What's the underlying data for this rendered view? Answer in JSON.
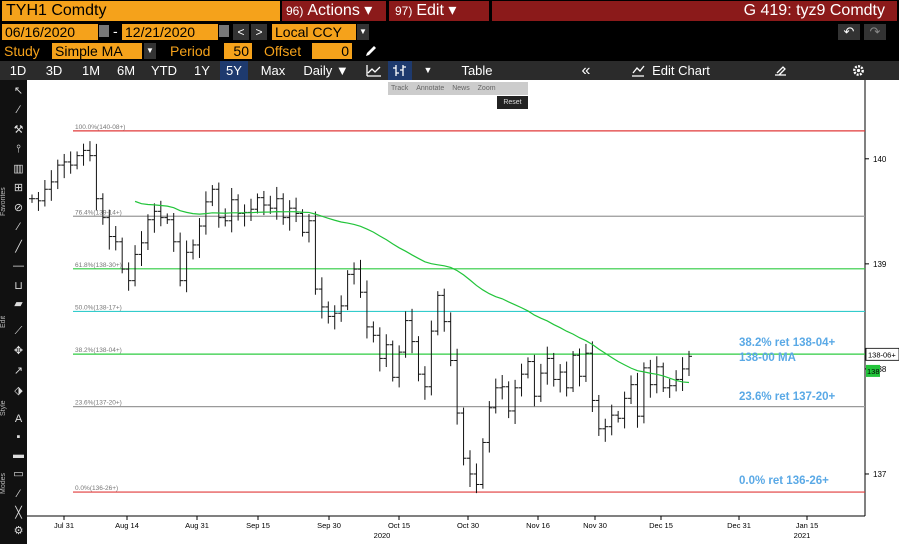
{
  "header": {
    "ticker": "TYH1 Comdty",
    "actions_num": "96)",
    "actions_label": "Actions ▾",
    "edit_num": "97)",
    "edit_label": "Edit ▾",
    "graph_title": "G 419: tyz9 Comdty"
  },
  "range": {
    "start": "06/16/2020",
    "end": "12/21/2020",
    "dash": "-",
    "prev": "<",
    "next": ">",
    "currency": "Local CCY",
    "undo": "↶",
    "redo": "↷"
  },
  "study": {
    "label": "Study",
    "value": "Simple MA",
    "period_label": "Period",
    "period": "50",
    "offset_label": "Offset",
    "offset": "0"
  },
  "toolbar": {
    "periods": [
      "1D",
      "3D",
      "1M",
      "6M",
      "YTD",
      "1Y",
      "5Y",
      "Max"
    ],
    "selected": "5Y",
    "frequency": "Daily ▼",
    "table": "Table",
    "collapse": "«",
    "edit_chart": "Edit Chart"
  },
  "subtoolbar": {
    "items": [
      "Track",
      "Annotate",
      "News",
      "Zoom"
    ],
    "reset": "Reset"
  },
  "sidebar": {
    "favorites": "Favorites",
    "edit": "Edit",
    "style": "Style",
    "modes": "Modes"
  },
  "colors": {
    "ma": "#22c43a",
    "bars": "#ffffff",
    "fib100": "#e03a3a",
    "fib76": "#9a9a9a",
    "fib61": "#2ecc40",
    "fib50": "#33cccc",
    "fib38": "#2ecc40",
    "fib23": "#9a9a9a",
    "fib0": "#e03a3a",
    "annot": "#5aa9e6",
    "highlight": "#f5a21b"
  },
  "chart_data": {
    "type": "bar",
    "subtype": "OHLC with 50-day simple moving average and Fibonacci retracement",
    "x_ticks": [
      "Jul 31",
      "Aug 14",
      "Aug 31",
      "Sep 15",
      "Sep 30",
      "Oct 15",
      "Oct 30",
      "Nov 16",
      "Nov 30",
      "Dec 15",
      "Dec 31",
      "Jan 15"
    ],
    "x_years": [
      "2020",
      "2021"
    ],
    "y_ticks": [
      "137",
      "138",
      "139",
      "140"
    ],
    "ylim": [
      136.6,
      140.75
    ],
    "last_price_label": "138-06+",
    "ma_price_label": "138",
    "fib_levels": [
      {
        "pct": "100.0%",
        "price": "140-08+",
        "value": 140.266
      },
      {
        "pct": "76.4%",
        "price": "139-14+",
        "value": 139.453
      },
      {
        "pct": "61.8%",
        "price": "138-30+",
        "value": 138.953
      },
      {
        "pct": "50.0%",
        "price": "138-17+",
        "value": 138.547
      },
      {
        "pct": "38.2%",
        "price": "138-04+",
        "value": 138.141
      },
      {
        "pct": "23.6%",
        "price": "137-20+",
        "value": 137.641
      },
      {
        "pct": "0.0%",
        "price": "136-26+",
        "value": 136.828
      }
    ],
    "annotations": [
      "38.2% ret 138-04+",
      "138-00 MA",
      "23.6% ret 137-20+",
      "0.0% ret 136-26+"
    ],
    "ohlc_close": [
      139.62,
      139.6,
      139.71,
      139.78,
      139.94,
      139.97,
      139.94,
      140.03,
      140.08,
      140.03,
      139.62,
      139.44,
      139.26,
      139.21,
      138.95,
      138.84,
      139.09,
      139.2,
      139.42,
      139.5,
      139.44,
      139.42,
      139.21,
      138.84,
      139.11,
      139.18,
      139.36,
      139.59,
      139.71,
      139.44,
      139.41,
      139.61,
      139.48,
      139.49,
      139.52,
      139.63,
      139.56,
      139.53,
      139.62,
      139.44,
      139.53,
      139.48,
      139.3,
      139.41,
      138.76,
      138.59,
      138.5,
      138.53,
      138.6,
      138.9,
      138.95,
      138.73,
      138.4,
      138.32,
      138.1,
      138.23,
      137.92,
      138.16,
      138.46,
      138.26,
      137.95,
      137.83,
      138.36,
      138.7,
      138.45,
      138.08,
      137.58,
      137.15,
      137.0,
      136.9,
      137.3,
      137.63,
      137.82,
      137.83,
      137.6,
      137.82,
      137.95,
      138.07,
      137.74,
      137.96,
      138.1,
      137.9,
      137.97,
      137.82,
      138.13,
      137.93,
      138.15,
      137.7,
      137.43,
      137.45,
      137.56,
      137.53,
      137.72,
      137.85,
      137.55,
      138.01,
      137.85,
      138.02,
      137.82,
      137.84,
      137.9,
      138.0,
      138.12
    ]
  }
}
